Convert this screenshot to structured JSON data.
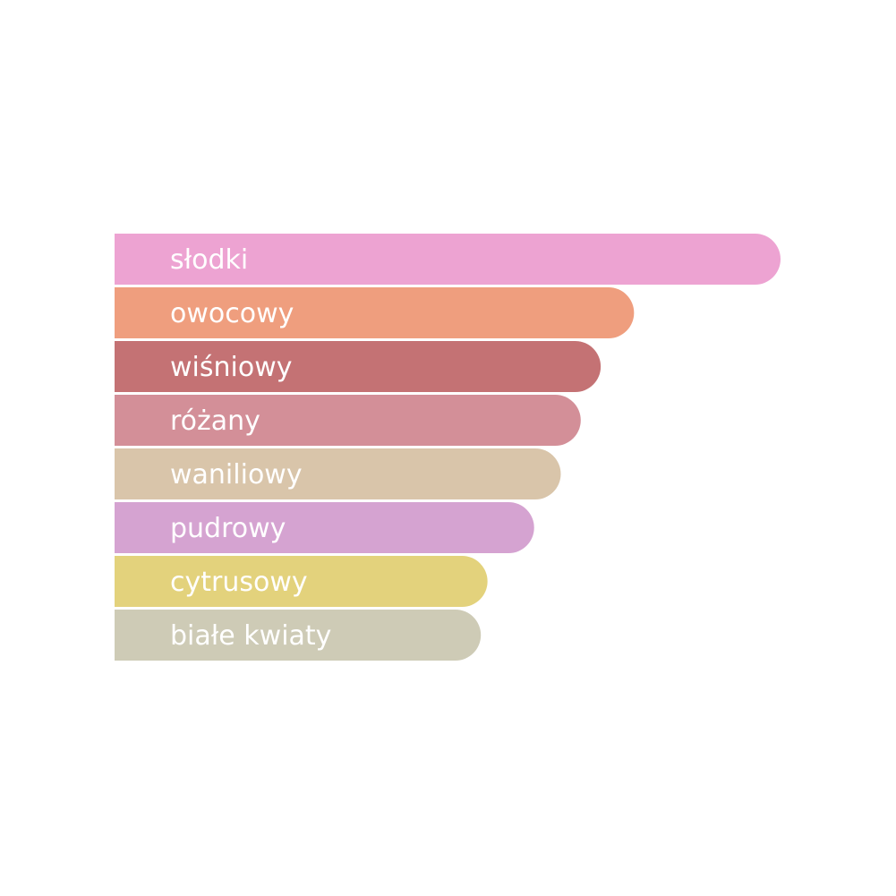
{
  "chart_data": {
    "type": "bar",
    "orientation": "horizontal",
    "categories": [
      "słodki",
      "owocowy",
      "wiśniowy",
      "różany",
      "waniliowy",
      "pudrowy",
      "cytrusowy",
      "białe kwiaty"
    ],
    "values": [
      100,
      78,
      73,
      70,
      67,
      63,
      56,
      55
    ],
    "colors": [
      "#eda3d2",
      "#ef9e7e",
      "#c47274",
      "#d38f98",
      "#d9c5aa",
      "#d5a3d1",
      "#e3d27c",
      "#cecbb6"
    ]
  }
}
